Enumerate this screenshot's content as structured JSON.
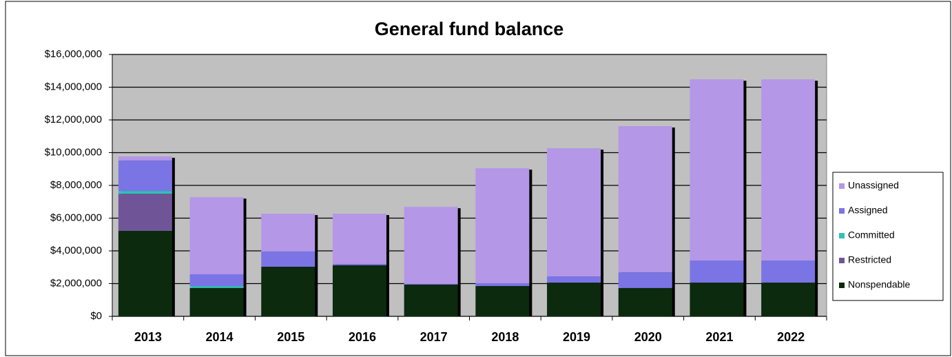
{
  "chart_data": {
    "type": "stacked_bar",
    "title": "General fund balance",
    "categories": [
      "2013",
      "2014",
      "2015",
      "2016",
      "2017",
      "2018",
      "2019",
      "2020",
      "2021",
      "2022"
    ],
    "series": [
      {
        "name": "Nonspendable",
        "color": "#0b2a0e",
        "values": [
          5220000,
          1730000,
          3030000,
          3120000,
          1940000,
          1850000,
          2060000,
          1730000,
          2060000,
          2060000
        ]
      },
      {
        "name": "Restricted",
        "color": "#6f5597",
        "values": [
          2270000,
          0,
          0,
          0,
          0,
          0,
          0,
          0,
          0,
          0
        ]
      },
      {
        "name": "Committed",
        "color": "#33c0b8",
        "values": [
          170000,
          120000,
          0,
          0,
          0,
          0,
          0,
          0,
          0,
          0
        ]
      },
      {
        "name": "Assigned",
        "color": "#7b74e5",
        "values": [
          1860000,
          720000,
          930000,
          80000,
          40000,
          170000,
          380000,
          960000,
          1350000,
          1350000
        ]
      },
      {
        "name": "Unassigned",
        "color": "#b497e7",
        "values": [
          250000,
          4710000,
          2310000,
          3070000,
          4710000,
          7030000,
          7830000,
          8930000,
          11070000,
          11070000
        ]
      }
    ],
    "ylim": [
      0,
      16000000
    ],
    "yticks": [
      {
        "value": 0,
        "label": "$0"
      },
      {
        "value": 2000000,
        "label": "$2,000,000"
      },
      {
        "value": 4000000,
        "label": "$4,000,000"
      },
      {
        "value": 6000000,
        "label": "$6,000,000"
      },
      {
        "value": 8000000,
        "label": "$8,000,000"
      },
      {
        "value": 10000000,
        "label": "$10,000,000"
      },
      {
        "value": 12000000,
        "label": "$12,000,000"
      },
      {
        "value": 14000000,
        "label": "$14,000,000"
      },
      {
        "value": 16000000,
        "label": "$16,000,000"
      }
    ],
    "grid": true,
    "legend": "right"
  }
}
